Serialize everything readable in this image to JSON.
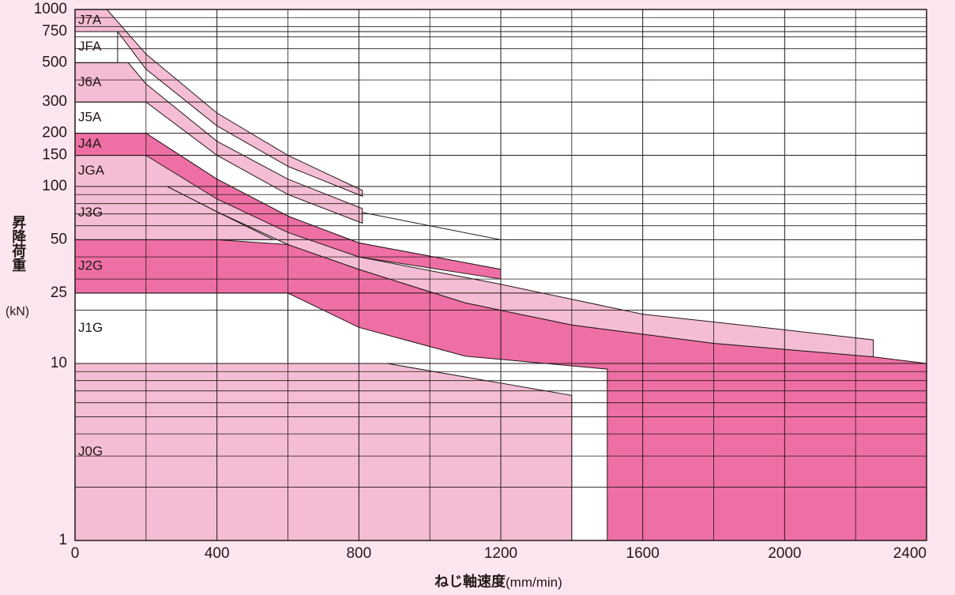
{
  "chart_data": {
    "type": "area",
    "xlabel": "ねじ軸速度",
    "xlabel_unit": "(mm/min)",
    "ylabel": "昇降荷重",
    "ylabel_unit": "(kN)",
    "xlim": [
      0,
      2400
    ],
    "xticks": [
      0,
      400,
      800,
      1200,
      1600,
      2000,
      2400
    ],
    "x_minor_ticks": [
      200,
      600,
      1000,
      1400,
      1800,
      2200
    ],
    "ylim": [
      1,
      1000
    ],
    "log_y": true,
    "yticks": [
      1,
      10,
      25,
      50,
      100,
      150,
      200,
      300,
      500,
      750,
      1000
    ],
    "y_minor_ticks": [
      2,
      3,
      4,
      5,
      6,
      7,
      8,
      9,
      20,
      30,
      40,
      60,
      70,
      80,
      90,
      400,
      600,
      700,
      800,
      900
    ],
    "grid": true,
    "series": [
      {
        "name": "J1G",
        "color": "#ffffff",
        "x": [
          0,
          0,
          600,
          600
        ],
        "values": [
          10,
          25,
          25,
          10
        ]
      },
      {
        "name": "JFA",
        "color": "#ffffff",
        "x": [
          0,
          0,
          120,
          120
        ],
        "values": [
          500,
          750,
          750,
          500
        ]
      },
      {
        "name": "J5A",
        "color": "#ffffff",
        "x": [
          0,
          0,
          200,
          400,
          600,
          800,
          1200,
          1200,
          800,
          600,
          400,
          200
        ],
        "values": [
          200,
          300,
          300,
          170,
          100,
          72,
          50,
          34,
          48,
          68,
          110,
          200
        ]
      },
      {
        "name": "J0G",
        "color": "#f4bdd5",
        "x": [
          0,
          0,
          880,
          1400,
          1400
        ],
        "values": [
          1,
          10,
          10,
          6.6,
          1
        ]
      },
      {
        "name": "J2G",
        "color": "#ee6fa5",
        "x": [
          0,
          0,
          400,
          600,
          800,
          1100,
          1400,
          1800,
          2250,
          2400,
          2400,
          1500,
          1500,
          1100,
          800,
          600
        ],
        "values": [
          25,
          50,
          50,
          47,
          34,
          22,
          16.5,
          13,
          10.9,
          10,
          1,
          1,
          9.3,
          11,
          16,
          25
        ]
      },
      {
        "name": "J3G",
        "color": "#f4bdd5",
        "x": [
          0,
          0,
          260,
          400,
          560
        ],
        "values": [
          50,
          100,
          100,
          72,
          50
        ]
      },
      {
        "name": "JGA",
        "color": "#f4bdd5",
        "x": [
          0,
          0,
          200,
          400,
          600,
          800,
          1200,
          1600,
          2000,
          2250,
          2250,
          1800,
          1400,
          1100,
          800,
          600,
          400,
          260
        ],
        "values": [
          100,
          150,
          150,
          95,
          58,
          40,
          28,
          19,
          15.5,
          13.6,
          10.9,
          13,
          16.5,
          22,
          34,
          47,
          72,
          100
        ]
      },
      {
        "name": "J4A",
        "color": "#ee6fa5",
        "x": [
          0,
          0,
          200,
          400,
          600,
          800,
          1200,
          1200,
          800,
          600,
          400,
          200
        ],
        "values": [
          150,
          200,
          200,
          110,
          68,
          48,
          34,
          30,
          40,
          55,
          85,
          150
        ]
      },
      {
        "name": "J6A",
        "color": "#f4bdd5",
        "x": [
          0,
          0,
          150,
          200,
          400,
          600,
          810,
          810,
          600,
          400,
          200
        ],
        "values": [
          300,
          500,
          500,
          380,
          180,
          110,
          75,
          62,
          90,
          150,
          300
        ]
      },
      {
        "name": "J7A",
        "color": "#f4bdd5",
        "x": [
          0,
          0,
          90,
          200,
          400,
          600,
          810,
          810,
          600,
          400,
          200,
          120
        ],
        "values": [
          750,
          1000,
          1000,
          560,
          260,
          150,
          95,
          88,
          130,
          220,
          460,
          750
        ]
      }
    ]
  }
}
